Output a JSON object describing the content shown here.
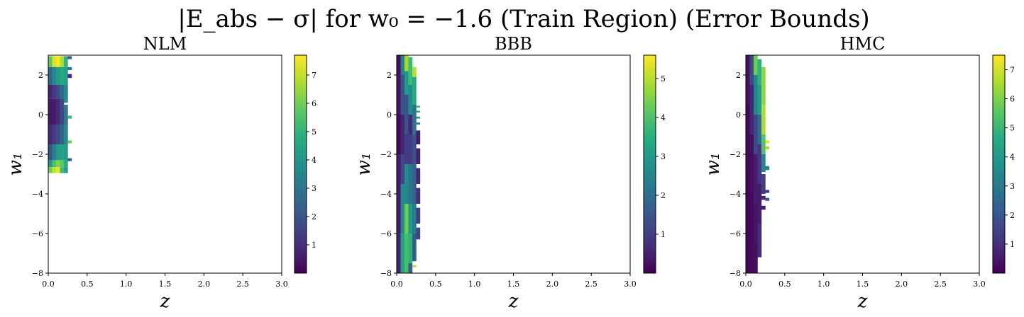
{
  "figure": {
    "title": "|E_abs − σ| for w₀ = −1.6 (Train Region) (Error Bounds)"
  },
  "chart_data": [
    {
      "type": "heatmap",
      "title": "NLM",
      "xlabel": "z",
      "ylabel": "w₁",
      "xlim": [
        0.0,
        3.0
      ],
      "ylim": [
        -8,
        3
      ],
      "xticks": [
        "0.0",
        "0.5",
        "1.0",
        "1.5",
        "2.0",
        "2.5",
        "3.0"
      ],
      "yticks": [
        "−8",
        "−6",
        "−4",
        "−2",
        "0",
        "2"
      ],
      "colorbar": {
        "colormap": "viridis",
        "min": 0,
        "max": 7.7,
        "ticks": [
          "1",
          "2",
          "3",
          "4",
          "5",
          "6",
          "7"
        ]
      },
      "columns": [
        {
          "z": [
            0.0,
            0.05
          ],
          "segments": [
            [
              2.95,
              2.4,
              5.8
            ],
            [
              2.4,
              1.5,
              2.6
            ],
            [
              1.5,
              0.8,
              0.8
            ],
            [
              0.8,
              -0.5,
              0.5
            ],
            [
              -0.5,
              -1.5,
              0.9
            ],
            [
              -1.5,
              -2.3,
              2.0
            ],
            [
              -2.3,
              -2.65,
              4.0
            ],
            [
              -2.65,
              -2.95,
              6.0
            ]
          ]
        },
        {
          "z": [
            0.05,
            0.1
          ],
          "segments": [
            [
              2.95,
              2.4,
              7.3
            ],
            [
              2.4,
              1.5,
              3.6
            ],
            [
              1.5,
              0.8,
              1.3
            ],
            [
              0.8,
              -0.5,
              0.6
            ],
            [
              -0.5,
              -1.5,
              1.3
            ],
            [
              -1.5,
              -2.3,
              3.3
            ],
            [
              -2.3,
              -2.65,
              5.5
            ],
            [
              -2.65,
              -2.95,
              7.0
            ]
          ]
        },
        {
          "z": [
            0.1,
            0.15
          ],
          "segments": [
            [
              2.95,
              2.4,
              7.6
            ],
            [
              2.4,
              1.5,
              4.2
            ],
            [
              1.5,
              0.8,
              1.8
            ],
            [
              0.8,
              -0.5,
              0.9
            ],
            [
              -0.5,
              -1.5,
              1.8
            ],
            [
              -1.5,
              -2.3,
              4.2
            ],
            [
              -2.3,
              -2.65,
              6.2
            ],
            [
              -2.65,
              -2.95,
              7.5
            ]
          ]
        },
        {
          "z": [
            0.15,
            0.2
          ],
          "segments": [
            [
              2.95,
              2.4,
              6.8
            ],
            [
              2.4,
              1.5,
              4.6
            ],
            [
              1.5,
              0.8,
              2.6
            ],
            [
              0.8,
              -0.5,
              1.6
            ],
            [
              -0.5,
              -1.5,
              2.4
            ],
            [
              -1.5,
              -2.3,
              4.4
            ],
            [
              -2.3,
              -2.65,
              5.8
            ],
            [
              -2.65,
              -2.95,
              5.3
            ]
          ]
        },
        {
          "z": [
            0.2,
            0.25
          ],
          "segments": [
            [
              2.95,
              2.4,
              5.0
            ],
            [
              2.4,
              1.5,
              4.4
            ],
            [
              1.5,
              0.6,
              3.6
            ],
            [
              0.5,
              -0.5,
              3.1
            ],
            [
              -0.5,
              -1.5,
              3.6
            ],
            [
              -1.5,
              -2.3,
              4.2
            ],
            [
              -2.3,
              -2.65,
              4.8
            ],
            [
              -2.65,
              -2.95,
              4.2
            ]
          ]
        },
        {
          "z": [
            0.25,
            0.3
          ],
          "segments": [
            [
              2.95,
              2.8,
              2.2
            ],
            [
              2.4,
              2.25,
              3.0
            ],
            [
              2.05,
              1.85,
              1.0
            ],
            [
              -0.05,
              -0.2,
              5.2
            ],
            [
              -1.3,
              -1.45,
              6.0
            ],
            [
              -2.2,
              -2.35,
              2.3
            ]
          ]
        }
      ]
    },
    {
      "type": "heatmap",
      "title": "BBB",
      "xlabel": "z",
      "ylabel": "w₁",
      "xlim": [
        0.0,
        3.0
      ],
      "ylim": [
        -8,
        3
      ],
      "xticks": [
        "0.0",
        "0.5",
        "1.0",
        "1.5",
        "2.0",
        "2.5",
        "3.0"
      ],
      "yticks": [
        "−8",
        "−6",
        "−4",
        "−2",
        "0",
        "2"
      ],
      "colorbar": {
        "colormap": "viridis",
        "min": 0,
        "max": 5.6,
        "ticks": [
          "1",
          "2",
          "3",
          "4",
          "5"
        ]
      },
      "columns": [
        {
          "z": [
            0.0,
            0.05
          ],
          "segments": [
            [
              3.0,
              2.0,
              0.2
            ],
            [
              2.0,
              0.0,
              0.3
            ],
            [
              0.0,
              -2.0,
              0.15
            ],
            [
              -2.0,
              -6.0,
              0.4
            ],
            [
              -6.0,
              -8.0,
              0.5
            ]
          ]
        },
        {
          "z": [
            0.05,
            0.1
          ],
          "segments": [
            [
              3.0,
              2.0,
              2.4
            ],
            [
              2.0,
              0.0,
              1.4
            ],
            [
              0.0,
              -2.0,
              0.6
            ],
            [
              -2.0,
              -3.5,
              1.2
            ],
            [
              -3.5,
              -6.0,
              2.6
            ],
            [
              -6.0,
              -8.0,
              3.2
            ]
          ]
        },
        {
          "z": [
            0.1,
            0.15
          ],
          "segments": [
            [
              3.0,
              2.2,
              4.8
            ],
            [
              2.2,
              1.0,
              3.0
            ],
            [
              1.0,
              -1.0,
              1.4
            ],
            [
              -1.0,
              -2.5,
              1.0
            ],
            [
              -2.5,
              -4.5,
              2.6
            ],
            [
              -4.5,
              -6.0,
              4.3
            ],
            [
              -6.0,
              -8.0,
              3.9
            ]
          ]
        },
        {
          "z": [
            0.15,
            0.2
          ],
          "segments": [
            [
              2.9,
              1.5,
              3.8
            ],
            [
              1.5,
              0.0,
              2.7
            ],
            [
              0.0,
              -1.0,
              0.6
            ],
            [
              -1.0,
              -2.5,
              1.0
            ],
            [
              -2.5,
              -4.5,
              2.2
            ],
            [
              -4.5,
              -6.0,
              3.0
            ],
            [
              -6.0,
              -7.5,
              3.6
            ],
            [
              -7.5,
              -8.0,
              1.6
            ]
          ]
        },
        {
          "z": [
            0.2,
            0.25
          ],
          "segments": [
            [
              2.4,
              1.9,
              5.0
            ],
            [
              1.9,
              0.5,
              3.4
            ],
            [
              0.5,
              -1.0,
              2.1
            ],
            [
              -1.0,
              -2.5,
              1.4
            ],
            [
              -2.5,
              -4.5,
              1.8
            ],
            [
              -4.5,
              -6.0,
              2.4
            ],
            [
              -6.0,
              -7.4,
              1.6
            ],
            [
              -7.6,
              -7.7,
              5.0
            ]
          ]
        },
        {
          "z": [
            0.25,
            0.3
          ],
          "segments": [
            [
              0.45,
              0.35,
              3.8
            ],
            [
              0.2,
              0.1,
              3.6
            ],
            [
              -0.1,
              -0.2,
              3.0
            ],
            [
              -0.4,
              -0.5,
              2.4
            ],
            [
              -0.8,
              -1.5,
              0.4
            ],
            [
              -1.7,
              -2.5,
              0.5
            ],
            [
              -2.7,
              -3.5,
              0.6
            ],
            [
              -3.7,
              -4.5,
              0.7
            ],
            [
              -4.7,
              -5.5,
              1.0
            ],
            [
              -5.7,
              -6.3,
              1.2
            ]
          ]
        }
      ]
    },
    {
      "type": "heatmap",
      "title": "HMC",
      "xlabel": "z",
      "ylabel": "w₁",
      "xlim": [
        0.0,
        3.0
      ],
      "ylim": [
        -8,
        3
      ],
      "xticks": [
        "0.0",
        "0.5",
        "1.0",
        "1.5",
        "2.0",
        "2.5",
        "3.0"
      ],
      "yticks": [
        "−8",
        "−6",
        "−4",
        "−2",
        "0",
        "2"
      ],
      "colorbar": {
        "colormap": "viridis",
        "min": 0,
        "max": 7.5,
        "ticks": [
          "1",
          "2",
          "3",
          "4",
          "5",
          "6",
          "7"
        ]
      },
      "columns": [
        {
          "z": [
            0.0,
            0.05
          ],
          "segments": [
            [
              3.0,
              0.5,
              0.3
            ],
            [
              0.5,
              -3.0,
              0.15
            ],
            [
              -3.0,
              -8.0,
              0.1
            ]
          ]
        },
        {
          "z": [
            0.05,
            0.1
          ],
          "segments": [
            [
              3.0,
              1.5,
              1.6
            ],
            [
              1.5,
              -1.0,
              0.8
            ],
            [
              -1.0,
              -4.0,
              0.3
            ],
            [
              -4.0,
              -8.0,
              0.2
            ]
          ]
        },
        {
          "z": [
            0.1,
            0.15
          ],
          "segments": [
            [
              3.0,
              2.0,
              5.8
            ],
            [
              2.0,
              0.0,
              3.4
            ],
            [
              0.0,
              -2.0,
              1.6
            ],
            [
              -2.0,
              -4.5,
              0.6
            ],
            [
              -4.5,
              -6.5,
              0.4
            ],
            [
              -6.5,
              -8.0,
              0.3
            ]
          ]
        },
        {
          "z": [
            0.15,
            0.2
          ],
          "segments": [
            [
              2.8,
              1.5,
              4.8
            ],
            [
              1.5,
              0.0,
              4.2
            ],
            [
              0.0,
              -1.5,
              2.6
            ],
            [
              -1.5,
              -3.5,
              1.2
            ],
            [
              -3.5,
              -5.5,
              0.6
            ],
            [
              -5.5,
              -7.2,
              0.9
            ]
          ]
        },
        {
          "z": [
            0.2,
            0.25
          ],
          "segments": [
            [
              2.4,
              0.5,
              6.2
            ],
            [
              0.5,
              -1.0,
              6.6
            ],
            [
              -1.0,
              -2.0,
              5.4
            ],
            [
              -2.0,
              -2.9,
              3.4
            ],
            [
              -3.0,
              -4.0,
              1.4
            ],
            [
              -4.1,
              -4.3,
              0.8
            ],
            [
              -4.6,
              -4.8,
              0.6
            ]
          ]
        },
        {
          "z": [
            0.25,
            0.3
          ],
          "segments": [
            [
              -1.3,
              -1.45,
              7.3
            ],
            [
              -1.6,
              -1.75,
              6.6
            ],
            [
              -2.6,
              -2.8,
              3.4
            ],
            [
              -3.8,
              -3.95,
              1.4
            ],
            [
              -4.2,
              -4.35,
              2.2
            ]
          ]
        }
      ]
    }
  ]
}
